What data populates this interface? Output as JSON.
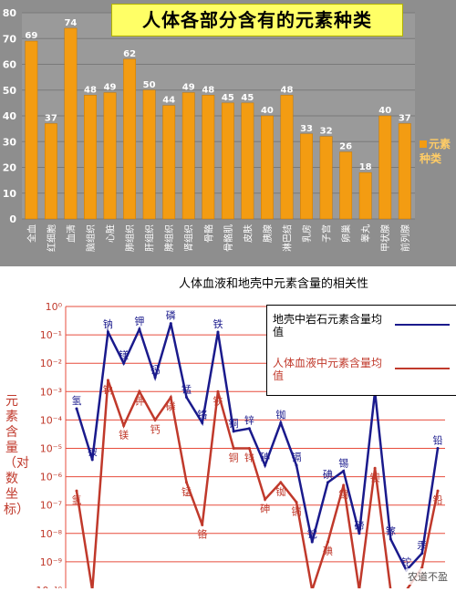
{
  "chart_data": [
    {
      "type": "bar",
      "title": "人体各部分含有的元素种类",
      "categories": [
        "全血",
        "红细胞",
        "血清",
        "脑组织",
        "心脏",
        "肺组织",
        "肝组织",
        "脾组织",
        "肾组织",
        "骨骼",
        "骨骼肌",
        "皮肤",
        "胰腺",
        "淋巴结",
        "乳房",
        "子宫",
        "卵巢",
        "睾丸",
        "甲状腺",
        "前列腺"
      ],
      "series": [
        {
          "name": "元素种类",
          "values": [
            69,
            37,
            74,
            48,
            49,
            62,
            50,
            44,
            49,
            48,
            45,
            45,
            40,
            48,
            33,
            32,
            26,
            18,
            40,
            37
          ]
        }
      ],
      "ylim": [
        0,
        80
      ],
      "yticks": [
        "0",
        "10",
        "20",
        "30",
        "40",
        "50",
        "60",
        "70",
        "80"
      ],
      "grid": true,
      "legend": "right",
      "bar_color": "#f39c12",
      "legend_label": "元素种类"
    },
    {
      "type": "line",
      "title": "人体血液和地壳中元素含量的相关性",
      "ylabel": "元素含量（对数坐标）",
      "yscale": "log",
      "yticks": [
        "10⁰",
        "10⁻¹",
        "10⁻²",
        "10⁻³",
        "10⁻⁴",
        "10⁻⁵",
        "10⁻⁶",
        "10⁻⁷",
        "10⁻⁸",
        "10⁻⁹",
        "10⁻¹⁰"
      ],
      "ylim_exp": [
        -10,
        0
      ],
      "grid": true,
      "legend": "top-right",
      "series": [
        {
          "name": "地壳中岩石元素含量均值",
          "color": "#1a1a8c",
          "values": [
            -3.6,
            -5.4,
            -0.9,
            -2.0,
            -0.8,
            -2.5,
            -0.6,
            -3.2,
            -4.1,
            -0.9,
            -4.4,
            -4.3,
            -5.6,
            -4.1,
            -5.6,
            -8.3,
            -6.2,
            -5.8,
            -8.0,
            -3.0,
            -8.2,
            -9.3,
            -8.7,
            -5.0
          ],
          "labels": [
            "氢",
            "铍",
            "钠",
            "镁",
            "钾",
            "钙",
            "磷",
            "锰",
            "铬",
            "铁",
            "铜",
            "锌",
            "砷",
            "铷",
            "镉",
            "铊",
            "碘",
            "锡",
            "碲",
            "钡",
            "镓",
            "铊",
            "汞",
            "铅"
          ]
        },
        {
          "name": "人体血液中元素含量均值",
          "color": "#c0392b",
          "values": [
            -6.5,
            -10.0,
            -2.6,
            -4.2,
            -3.0,
            -4.0,
            -3.2,
            -6.2,
            -7.7,
            -3.0,
            -5.0,
            -5.0,
            -6.8,
            -6.2,
            -6.9,
            -10.0,
            -8.3,
            -6.3,
            -10.0,
            -5.7,
            -10.0,
            -10.0,
            -9.2,
            -6.5
          ],
          "labels": [
            "氢",
            "铍",
            "钠",
            "镁",
            "钾",
            "钙",
            "磷",
            "锰",
            "铬",
            "铁",
            "铜",
            "锌",
            "砷",
            "铷",
            "镉",
            "铊",
            "碘",
            "锡",
            "碲",
            "钡",
            "镓",
            "铊",
            "汞",
            "铅"
          ]
        }
      ]
    }
  ],
  "watermark": "农道不盈"
}
